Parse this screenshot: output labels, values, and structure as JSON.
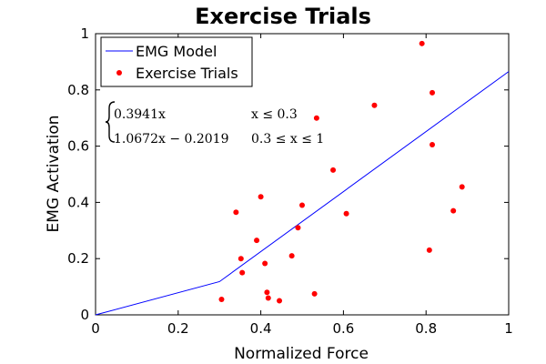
{
  "chart_data": {
    "type": "scatter",
    "title": "Exercise Trials",
    "xlabel": "Normalized Force",
    "ylabel": "EMG Activation",
    "xlim": [
      0,
      1
    ],
    "ylim": [
      0,
      1
    ],
    "xticks": [
      0,
      0.2,
      0.4,
      0.6,
      0.8,
      1
    ],
    "yticks": [
      0,
      0.2,
      0.4,
      0.6,
      0.8,
      1
    ],
    "xtick_labels": [
      "0",
      "0.2",
      "0.4",
      "0.6",
      "0.8",
      "1"
    ],
    "ytick_labels": [
      "0",
      "0.2",
      "0.4",
      "0.6",
      "0.8",
      "1"
    ],
    "grid": false,
    "legend_position": "top-left",
    "series": [
      {
        "name": "EMG Model",
        "kind": "line",
        "color": "#0000ff",
        "x": [
          0,
          0.3,
          1
        ],
        "y": [
          0,
          0.1182,
          0.8653
        ]
      },
      {
        "name": "Exercise Trials",
        "kind": "scatter",
        "color": "#ff0000",
        "x": [
          0.305,
          0.34,
          0.352,
          0.355,
          0.39,
          0.4,
          0.41,
          0.415,
          0.418,
          0.445,
          0.475,
          0.49,
          0.5,
          0.53,
          0.535,
          0.575,
          0.607,
          0.675,
          0.79,
          0.808,
          0.815,
          0.815,
          0.866,
          0.887
        ],
        "y": [
          0.055,
          0.365,
          0.2,
          0.15,
          0.265,
          0.42,
          0.183,
          0.08,
          0.06,
          0.05,
          0.21,
          0.31,
          0.39,
          0.075,
          0.7,
          0.515,
          0.36,
          0.745,
          0.965,
          0.23,
          0.79,
          0.605,
          0.37,
          0.455
        ]
      }
    ],
    "annotation": {
      "cases": [
        {
          "expr": "0.3941x",
          "cond": "x ≤ 0.3"
        },
        {
          "expr": "1.0672x − 0.2019",
          "cond": "0.3 ≤ x ≤ 1"
        }
      ]
    }
  }
}
